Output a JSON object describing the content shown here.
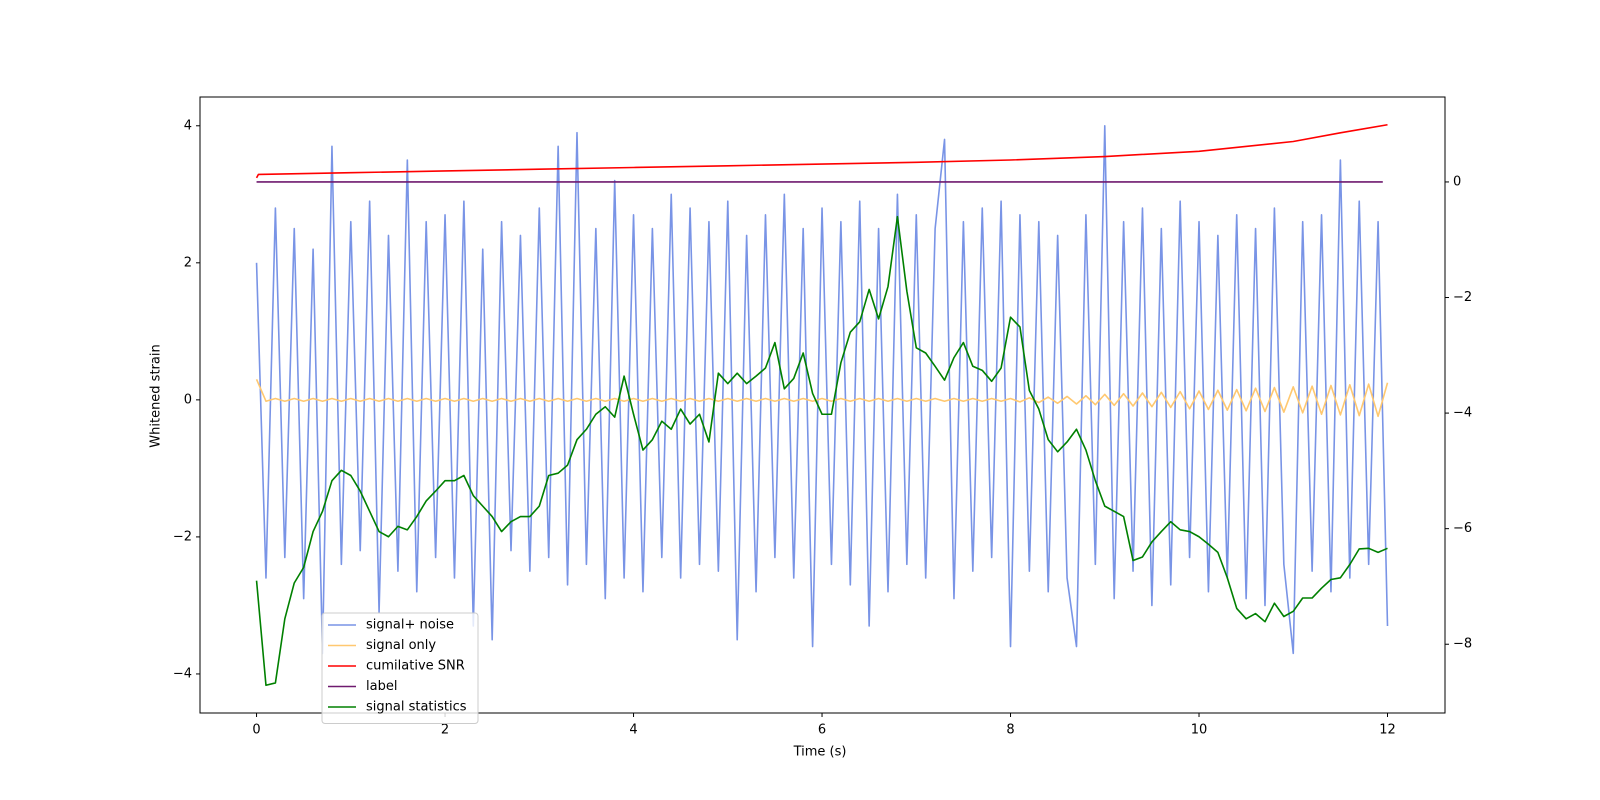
{
  "chart_data": {
    "type": "line",
    "xlabel": "Time (s)",
    "ylabel": "Whitened strain",
    "xlim": [
      -0.6,
      12.61
    ],
    "ylim": [
      -4.57,
      4.42
    ],
    "y2lim": [
      -9.19,
      1.47
    ],
    "xticks": [
      0,
      2,
      4,
      6,
      8,
      10,
      12
    ],
    "yticks": [
      {
        "value": -4,
        "label": "−4"
      },
      {
        "value": -2,
        "label": "−2"
      },
      0,
      2,
      4
    ],
    "y2ticks": [
      {
        "value": -8,
        "label": "−8"
      },
      {
        "value": -6,
        "label": "−6"
      },
      {
        "value": -4,
        "label": "−4"
      },
      {
        "value": -2,
        "label": "−2"
      },
      0
    ],
    "legend": "lower left",
    "x": [
      0,
      0.1,
      0.2,
      0.3,
      0.4,
      0.5,
      0.6,
      0.7,
      0.8,
      0.9,
      1,
      1.1,
      1.2,
      1.3,
      1.4,
      1.5,
      1.6,
      1.7,
      1.8,
      1.9,
      2,
      2.1,
      2.2,
      2.3,
      2.4,
      2.5,
      2.6,
      2.7,
      2.8,
      2.9,
      3,
      3.1,
      3.2,
      3.3,
      3.4,
      3.5,
      3.6,
      3.7,
      3.8,
      3.9,
      4,
      4.1,
      4.2,
      4.3,
      4.4,
      4.5,
      4.6,
      4.7,
      4.8,
      4.9,
      5,
      5.1,
      5.2,
      5.3,
      5.4,
      5.5,
      5.6,
      5.7,
      5.8,
      5.9,
      6,
      6.1,
      6.2,
      6.3,
      6.4,
      6.5,
      6.6,
      6.7,
      6.8,
      6.9,
      7,
      7.1,
      7.2,
      7.3,
      7.4,
      7.5,
      7.6,
      7.7,
      7.8,
      7.9,
      8,
      8.1,
      8.2,
      8.3,
      8.4,
      8.5,
      8.6,
      8.7,
      8.8,
      8.9,
      9,
      9.1,
      9.2,
      9.3,
      9.4,
      9.5,
      9.6,
      9.7,
      9.8,
      9.9,
      10,
      10.1,
      10.2,
      10.3,
      10.4,
      10.5,
      10.6,
      10.7,
      10.8,
      10.9,
      11,
      11.1,
      11.2,
      11.3,
      11.4,
      11.5,
      11.6,
      11.7,
      11.8,
      11.9,
      12
    ],
    "series": [
      {
        "name": "signal+ noise",
        "color": "#7994e6",
        "values": [
          2.0,
          -2.6,
          2.8,
          -2.3,
          2.5,
          -2.9,
          2.2,
          -3.7,
          3.7,
          -2.4,
          2.6,
          -2.2,
          2.9,
          -3.1,
          2.4,
          -2.5,
          3.5,
          -2.8,
          2.6,
          -2.3,
          2.7,
          -2.6,
          2.9,
          -3.3,
          2.2,
          -3.5,
          2.6,
          -2.2,
          2.4,
          -2.5,
          2.8,
          -2.3,
          3.7,
          -2.7,
          3.9,
          -2.4,
          2.5,
          -2.9,
          3.2,
          -2.6,
          2.7,
          -2.8,
          2.5,
          -2.3,
          3.0,
          -2.6,
          2.8,
          -2.4,
          2.6,
          -2.5,
          2.9,
          -3.5,
          2.4,
          -2.8,
          2.7,
          -2.3,
          3.0,
          -2.6,
          2.5,
          -3.6,
          2.8,
          -2.4,
          2.6,
          -2.7,
          2.9,
          -3.3,
          2.5,
          -2.8,
          3.0,
          -2.4,
          2.7,
          -2.6,
          2.5,
          3.8,
          -2.9,
          2.6,
          -2.5,
          2.8,
          -2.3,
          2.9,
          -3.6,
          2.7,
          -2.5,
          2.6,
          -2.8,
          2.4,
          -2.6,
          -3.6,
          2.7,
          -2.4,
          4.0,
          -2.9,
          2.6,
          -2.5,
          2.8,
          -3.0,
          2.5,
          -2.7,
          2.9,
          -2.3,
          2.6,
          -2.8,
          2.4,
          -2.6,
          2.7,
          -2.9,
          2.5,
          -3.0,
          2.8,
          -2.4,
          -3.7,
          2.6,
          -2.5,
          2.7,
          -2.8,
          3.5,
          -2.6,
          2.9,
          -2.4,
          2.6,
          -3.3
        ]
      },
      {
        "name": "signal only",
        "color": "#ffc870",
        "values": [
          0.3,
          -0.02,
          0.02,
          -0.02,
          0.02,
          -0.02,
          0.02,
          -0.02,
          0.02,
          -0.02,
          0.02,
          -0.02,
          0.02,
          -0.02,
          0.02,
          -0.02,
          0.02,
          -0.02,
          0.02,
          -0.02,
          0.02,
          -0.02,
          0.02,
          -0.02,
          0.02,
          -0.02,
          0.02,
          -0.02,
          0.02,
          -0.02,
          0.02,
          -0.02,
          0.02,
          -0.02,
          0.02,
          -0.02,
          0.02,
          -0.02,
          0.02,
          -0.02,
          0.02,
          -0.02,
          0.02,
          -0.02,
          0.02,
          -0.02,
          0.02,
          -0.02,
          0.02,
          -0.02,
          0.02,
          -0.02,
          0.02,
          -0.02,
          0.02,
          -0.02,
          0.02,
          -0.02,
          0.02,
          -0.02,
          0.02,
          -0.02,
          0.02,
          -0.02,
          0.02,
          -0.02,
          0.02,
          -0.02,
          0.02,
          -0.02,
          0.02,
          -0.02,
          0.02,
          -0.02,
          0.02,
          -0.02,
          0.02,
          -0.02,
          0.02,
          -0.02,
          0.02,
          -0.03,
          0.03,
          -0.04,
          0.04,
          -0.05,
          0.05,
          -0.06,
          0.06,
          -0.07,
          0.08,
          -0.08,
          0.09,
          -0.09,
          0.1,
          -0.1,
          0.11,
          -0.11,
          0.12,
          -0.13,
          0.13,
          -0.14,
          0.14,
          -0.15,
          0.15,
          -0.16,
          0.17,
          -0.17,
          0.18,
          -0.18,
          0.19,
          -0.19,
          0.2,
          -0.21,
          0.21,
          -0.22,
          0.22,
          -0.23,
          0.23,
          -0.24,
          0.25
        ]
      },
      {
        "name": "cumilative SNR",
        "color": "#ff0000",
        "axis": "y2",
        "x": [
          0,
          0.02,
          1,
          2,
          3,
          4,
          5,
          6,
          7,
          8,
          9,
          10,
          11,
          11.5,
          12
        ],
        "values": [
          0.07,
          0.13,
          0.16,
          0.19,
          0.22,
          0.25,
          0.28,
          0.31,
          0.34,
          0.38,
          0.44,
          0.53,
          0.7,
          0.85,
          0.99
        ]
      },
      {
        "name": "label",
        "color": "#6f1a6f",
        "axis": "y2",
        "x": [
          0,
          11.95
        ],
        "values": [
          0,
          0
        ]
      },
      {
        "name": "signal statistics",
        "color": "#008000",
        "axis": "y2",
        "values": [
          -6.9,
          -8.71,
          -8.67,
          -7.56,
          -6.94,
          -6.67,
          -6.05,
          -5.7,
          -5.17,
          -4.99,
          -5.08,
          -5.35,
          -5.7,
          -6.05,
          -6.14,
          -5.96,
          -6.02,
          -5.79,
          -5.52,
          -5.35,
          -5.17,
          -5.17,
          -5.08,
          -5.43,
          -5.61,
          -5.79,
          -6.05,
          -5.88,
          -5.79,
          -5.79,
          -5.61,
          -5.08,
          -5.04,
          -4.9,
          -4.46,
          -4.28,
          -4.02,
          -3.89,
          -4.07,
          -3.36,
          -4.02,
          -4.64,
          -4.46,
          -4.14,
          -4.28,
          -3.93,
          -4.19,
          -4.02,
          -4.5,
          -3.31,
          -3.49,
          -3.31,
          -3.49,
          -3.36,
          -3.22,
          -2.78,
          -3.58,
          -3.4,
          -2.96,
          -3.66,
          -4.02,
          -4.02,
          -3.13,
          -2.6,
          -2.42,
          -1.86,
          -2.37,
          -1.81,
          -0.6,
          -1.89,
          -2.87,
          -2.96,
          -3.19,
          -3.43,
          -3.04,
          -2.78,
          -3.19,
          -3.26,
          -3.45,
          -3.22,
          -2.34,
          -2.51,
          -3.61,
          -3.93,
          -4.46,
          -4.67,
          -4.5,
          -4.28,
          -4.64,
          -5.17,
          -5.61,
          -5.7,
          -5.79,
          -6.55,
          -6.49,
          -6.23,
          -6.05,
          -5.88,
          -6.02,
          -6.05,
          -6.14,
          -6.27,
          -6.41,
          -6.85,
          -7.38,
          -7.56,
          -7.47,
          -7.61,
          -7.29,
          -7.52,
          -7.43,
          -7.2,
          -7.2,
          -7.03,
          -6.88,
          -6.85,
          -6.62,
          -6.35,
          -6.34,
          -6.41,
          -6.34
        ]
      }
    ]
  }
}
